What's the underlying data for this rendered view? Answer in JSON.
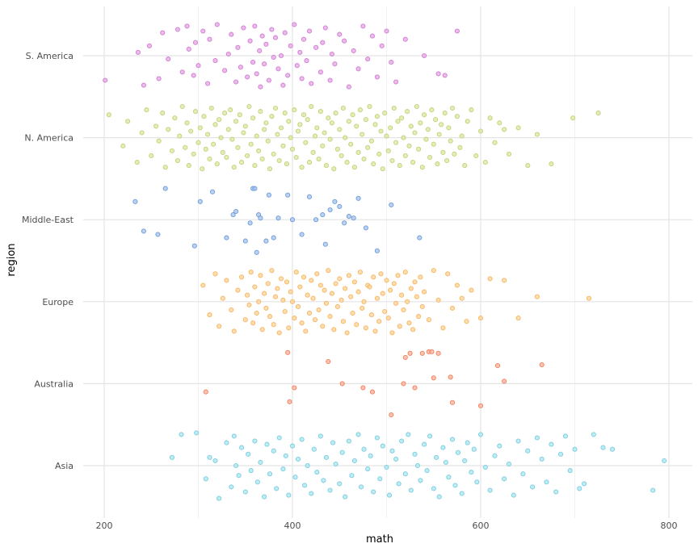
{
  "chart_data": {
    "type": "scatter",
    "jitter": "vertical",
    "xlabel": "math",
    "ylabel": "region",
    "xlim": [
      195,
      830
    ],
    "x_ticks": [
      200,
      400,
      600,
      800
    ],
    "x_tick_labels": [
      "200",
      "400",
      "600",
      "800"
    ],
    "categories": [
      "Asia",
      "Australia",
      "Europe",
      "Middle-East",
      "N. America",
      "S. America"
    ],
    "grid": true,
    "legend": "none",
    "series": [
      {
        "name": "S. America",
        "color": "#E6A3E6",
        "stroke": "#D07FD0",
        "values": [
          201,
          236,
          242,
          248,
          258,
          262,
          268,
          278,
          283,
          288,
          290,
          295,
          297,
          300,
          305,
          310,
          312,
          318,
          320,
          328,
          332,
          335,
          340,
          342,
          345,
          348,
          352,
          355,
          358,
          360,
          362,
          365,
          366,
          368,
          370,
          372,
          375,
          378,
          380,
          382,
          385,
          388,
          390,
          392,
          395,
          398,
          402,
          405,
          408,
          410,
          412,
          415,
          418,
          420,
          425,
          430,
          432,
          435,
          440,
          442,
          445,
          450,
          455,
          460,
          465,
          470,
          475,
          480,
          485,
          490,
          495,
          500,
          505,
          510,
          520,
          540,
          555,
          562,
          575
        ],
        "jitter": [
          -0.3,
          0.04,
          -0.36,
          0.12,
          -0.28,
          0.28,
          -0.04,
          0.32,
          -0.2,
          0.36,
          0.08,
          -0.24,
          0.16,
          -0.12,
          0.3,
          -0.34,
          0.2,
          -0.06,
          0.38,
          -0.18,
          0.02,
          0.26,
          -0.32,
          0.1,
          -0.14,
          0.34,
          -0.26,
          0.18,
          -0.08,
          0.36,
          -0.22,
          0.06,
          -0.38,
          0.24,
          -0.1,
          0.14,
          -0.3,
          0.32,
          -0.02,
          0.22,
          -0.16,
          0.0,
          -0.36,
          0.28,
          -0.24,
          0.12,
          0.38,
          -0.12,
          0.04,
          -0.28,
          0.2,
          -0.06,
          0.3,
          -0.34,
          0.1,
          -0.2,
          0.16,
          0.34,
          -0.3,
          0.02,
          -0.1,
          0.26,
          0.18,
          -0.38,
          0.06,
          -0.16,
          0.36,
          -0.04,
          0.24,
          -0.26,
          0.12,
          0.3,
          -0.08,
          -0.32,
          0.2,
          0.0,
          -0.22,
          -0.24,
          0.3
        ]
      },
      {
        "name": "N. America",
        "color": "#DCE6A0",
        "stroke": "#C3D279",
        "values": [
          205,
          220,
          225,
          235,
          240,
          245,
          250,
          255,
          258,
          262,
          265,
          268,
          272,
          275,
          278,
          280,
          283,
          286,
          288,
          290,
          292,
          295,
          297,
          300,
          302,
          304,
          306,
          308,
          310,
          312,
          314,
          316,
          318,
          320,
          322,
          324,
          326,
          328,
          330,
          332,
          334,
          336,
          338,
          340,
          342,
          344,
          346,
          348,
          350,
          352,
          354,
          356,
          358,
          360,
          362,
          364,
          366,
          368,
          370,
          372,
          374,
          376,
          378,
          380,
          382,
          384,
          386,
          388,
          390,
          392,
          394,
          396,
          398,
          400,
          402,
          404,
          406,
          408,
          410,
          412,
          414,
          416,
          418,
          420,
          422,
          424,
          426,
          428,
          430,
          432,
          434,
          436,
          438,
          440,
          442,
          444,
          446,
          448,
          450,
          452,
          454,
          456,
          458,
          460,
          462,
          464,
          466,
          468,
          470,
          472,
          474,
          476,
          478,
          480,
          482,
          484,
          486,
          488,
          490,
          492,
          494,
          496,
          498,
          500,
          502,
          504,
          506,
          508,
          510,
          512,
          514,
          516,
          518,
          520,
          522,
          524,
          526,
          528,
          530,
          532,
          534,
          536,
          538,
          540,
          542,
          544,
          546,
          548,
          550,
          552,
          554,
          556,
          558,
          560,
          562,
          564,
          566,
          568,
          570,
          572,
          575,
          578,
          580,
          583,
          586,
          590,
          595,
          600,
          605,
          610,
          615,
          620,
          625,
          630,
          640,
          650,
          660,
          675,
          698,
          725
        ],
        "jitter": [
          0.28,
          -0.1,
          0.2,
          -0.3,
          0.06,
          0.34,
          -0.22,
          0.14,
          -0.04,
          0.3,
          -0.36,
          0.1,
          -0.16,
          0.24,
          -0.28,
          0.02,
          0.38,
          -0.12,
          0.18,
          -0.34,
          0.08,
          -0.2,
          0.32,
          -0.06,
          0.12,
          -0.38,
          0.26,
          -0.14,
          0.04,
          -0.26,
          0.36,
          -0.08,
          0.16,
          -0.32,
          0.22,
          0.0,
          -0.18,
          0.3,
          -0.24,
          0.1,
          0.34,
          -0.02,
          -0.36,
          0.2,
          -0.12,
          0.28,
          -0.3,
          0.06,
          0.14,
          -0.22,
          0.38,
          -0.08,
          0.24,
          -0.34,
          0.02,
          -0.16,
          0.32,
          -0.26,
          0.1,
          0.18,
          -0.04,
          -0.38,
          0.26,
          -0.2,
          0.36,
          0.04,
          -0.28,
          0.12,
          -0.1,
          0.3,
          -0.32,
          0.2,
          0.0,
          -0.14,
          0.34,
          -0.24,
          0.08,
          0.16,
          -0.36,
          0.28,
          -0.06,
          0.22,
          -0.3,
          0.38,
          -0.18,
          0.02,
          0.12,
          -0.26,
          0.32,
          -0.1,
          0.06,
          -0.34,
          0.24,
          -0.02,
          0.18,
          -0.38,
          0.3,
          -0.14,
          0.1,
          -0.22,
          0.36,
          0.0,
          -0.3,
          0.2,
          -0.08,
          0.28,
          -0.36,
          0.14,
          -0.18,
          0.34,
          0.04,
          -0.26,
          0.22,
          -0.12,
          0.38,
          -0.04,
          -0.32,
          0.16,
          0.26,
          -0.2,
          0.08,
          -0.38,
          0.3,
          0.02,
          -0.16,
          0.12,
          -0.28,
          0.36,
          -0.06,
          0.2,
          -0.34,
          0.24,
          0.0,
          -0.22,
          0.32,
          -0.1,
          0.14,
          -0.3,
          0.06,
          0.38,
          -0.14,
          0.18,
          -0.36,
          0.28,
          -0.02,
          0.1,
          -0.24,
          0.34,
          -0.08,
          0.22,
          -0.32,
          0.04,
          0.16,
          -0.18,
          0.3,
          -0.28,
          0.12,
          -0.04,
          0.36,
          -0.2,
          0.26,
          -0.12,
          0.02,
          -0.34,
          0.2,
          0.34,
          -0.22,
          0.08,
          -0.3,
          0.24,
          -0.06,
          0.18,
          0.1,
          -0.2,
          0.12,
          -0.34,
          0.04,
          -0.32,
          0.24,
          0.3,
          0.26
        ]
      },
      {
        "name": "Middle-East",
        "color": "#A4C3EE",
        "stroke": "#6E9BD8",
        "values": [
          233,
          242,
          257,
          265,
          296,
          302,
          315,
          330,
          337,
          340,
          350,
          355,
          358,
          360,
          362,
          364,
          366,
          372,
          375,
          380,
          385,
          395,
          400,
          410,
          418,
          425,
          432,
          435,
          440,
          445,
          450,
          455,
          460,
          465,
          470,
          478,
          490,
          505,
          535
        ],
        "jitter": [
          0.22,
          -0.14,
          -0.18,
          0.38,
          -0.32,
          0.22,
          0.34,
          -0.22,
          0.06,
          0.1,
          -0.26,
          -0.04,
          0.38,
          0.38,
          -0.4,
          0.06,
          0.02,
          -0.26,
          0.3,
          -0.22,
          0.02,
          0.3,
          0.0,
          -0.18,
          0.28,
          0.0,
          0.06,
          -0.3,
          0.12,
          0.22,
          0.16,
          -0.04,
          0.04,
          0.02,
          0.26,
          -0.1,
          -0.38,
          0.18,
          -0.22
        ]
      },
      {
        "name": "Europe",
        "color": "#FFD295",
        "stroke": "#F5B660",
        "values": [
          305,
          312,
          318,
          322,
          326,
          330,
          335,
          338,
          342,
          346,
          350,
          352,
          354,
          356,
          358,
          360,
          362,
          364,
          366,
          368,
          370,
          372,
          374,
          376,
          378,
          380,
          382,
          384,
          386,
          388,
          390,
          392,
          394,
          396,
          398,
          400,
          402,
          404,
          406,
          408,
          410,
          412,
          414,
          416,
          418,
          420,
          422,
          424,
          426,
          428,
          430,
          432,
          434,
          436,
          438,
          440,
          442,
          444,
          446,
          448,
          450,
          452,
          454,
          456,
          458,
          460,
          462,
          464,
          466,
          468,
          470,
          472,
          474,
          476,
          478,
          480,
          482,
          484,
          486,
          488,
          490,
          492,
          494,
          496,
          498,
          500,
          502,
          504,
          506,
          508,
          510,
          512,
          514,
          516,
          518,
          520,
          522,
          524,
          526,
          528,
          530,
          532,
          534,
          536,
          538,
          540,
          545,
          550,
          555,
          560,
          565,
          570,
          575,
          580,
          585,
          590,
          600,
          610,
          625,
          640,
          660,
          715
        ],
        "jitter": [
          0.2,
          -0.16,
          0.34,
          -0.3,
          0.04,
          0.26,
          -0.1,
          -0.36,
          0.14,
          0.3,
          -0.22,
          0.08,
          -0.04,
          0.36,
          -0.26,
          0.18,
          -0.14,
          0.0,
          0.32,
          -0.34,
          0.1,
          -0.08,
          0.22,
          -0.18,
          0.38,
          -0.28,
          0.06,
          0.16,
          -0.38,
          0.28,
          0.02,
          -0.12,
          0.24,
          -0.32,
          0.12,
          0.0,
          -0.2,
          0.36,
          -0.06,
          0.18,
          -0.26,
          0.3,
          -0.36,
          0.08,
          -0.14,
          0.26,
          0.04,
          -0.22,
          0.34,
          -0.1,
          0.2,
          -0.3,
          0.14,
          -0.02,
          0.38,
          -0.18,
          0.1,
          -0.34,
          0.22,
          -0.06,
          0.28,
          0.02,
          -0.24,
          0.16,
          -0.38,
          0.32,
          0.06,
          -0.14,
          0.24,
          -0.28,
          0.12,
          0.36,
          -0.08,
          0.0,
          -0.32,
          0.2,
          0.18,
          -0.16,
          0.3,
          -0.36,
          0.04,
          -0.24,
          0.34,
          0.1,
          -0.12,
          0.26,
          -0.2,
          0.14,
          -0.38,
          0.22,
          -0.02,
          0.32,
          -0.3,
          0.08,
          -0.1,
          0.36,
          0.0,
          -0.26,
          0.16,
          -0.34,
          0.24,
          0.06,
          -0.18,
          0.3,
          -0.06,
          0.12,
          -0.22,
          0.38,
          0.02,
          -0.32,
          0.34,
          -0.08,
          0.2,
          0.04,
          -0.24,
          0.14,
          -0.2,
          0.28,
          0.26,
          -0.2,
          0.06,
          0.04
        ]
      },
      {
        "name": "Australia",
        "color": "#FFAF95",
        "stroke": "#F07F5E",
        "values": [
          308,
          395,
          397,
          402,
          438,
          453,
          475,
          485,
          505,
          518,
          520,
          525,
          530,
          538,
          545,
          548,
          550,
          555,
          568,
          570,
          600,
          618,
          625,
          665
        ],
        "jitter": [
          -0.1,
          0.38,
          -0.22,
          -0.05,
          0.27,
          0.0,
          -0.05,
          -0.1,
          -0.38,
          0.0,
          0.32,
          0.37,
          -0.05,
          0.37,
          0.39,
          0.39,
          0.07,
          0.37,
          0.08,
          -0.23,
          -0.27,
          0.22,
          0.03,
          0.23
        ]
      },
      {
        "name": "Asia",
        "color": "#A8E6F0",
        "stroke": "#7CCDDD",
        "values": [
          272,
          282,
          298,
          308,
          312,
          318,
          322,
          330,
          335,
          338,
          340,
          343,
          346,
          350,
          353,
          356,
          360,
          363,
          366,
          370,
          373,
          376,
          380,
          383,
          386,
          390,
          393,
          396,
          400,
          403,
          406,
          410,
          413,
          416,
          420,
          423,
          426,
          430,
          433,
          436,
          440,
          443,
          446,
          450,
          453,
          456,
          460,
          463,
          466,
          470,
          473,
          476,
          480,
          483,
          486,
          490,
          493,
          496,
          500,
          503,
          506,
          510,
          513,
          516,
          520,
          523,
          526,
          530,
          533,
          536,
          540,
          543,
          546,
          550,
          553,
          556,
          560,
          563,
          566,
          570,
          573,
          576,
          580,
          583,
          586,
          590,
          593,
          596,
          600,
          605,
          610,
          615,
          620,
          625,
          630,
          635,
          640,
          645,
          650,
          655,
          660,
          665,
          670,
          675,
          680,
          685,
          690,
          695,
          700,
          705,
          710,
          720,
          730,
          740,
          783,
          795
        ],
        "jitter": [
          0.1,
          0.38,
          0.4,
          -0.16,
          0.1,
          0.06,
          -0.4,
          0.28,
          -0.26,
          0.36,
          0.0,
          -0.12,
          0.22,
          -0.32,
          0.14,
          -0.06,
          0.3,
          -0.2,
          0.04,
          -0.38,
          0.26,
          -0.1,
          0.18,
          -0.28,
          0.34,
          -0.04,
          0.12,
          -0.36,
          0.24,
          -0.14,
          0.08,
          0.32,
          -0.24,
          0.0,
          -0.34,
          0.2,
          -0.08,
          0.36,
          -0.18,
          0.1,
          -0.3,
          0.28,
          0.02,
          -0.22,
          0.16,
          -0.38,
          0.3,
          -0.12,
          0.06,
          0.38,
          -0.26,
          0.2,
          -0.04,
          0.12,
          -0.32,
          0.34,
          -0.16,
          0.24,
          -0.02,
          -0.36,
          0.18,
          0.08,
          -0.22,
          0.3,
          -0.1,
          0.38,
          -0.3,
          0.14,
          0.0,
          -0.18,
          0.26,
          -0.06,
          0.36,
          -0.28,
          0.1,
          -0.38,
          0.22,
          0.04,
          -0.14,
          0.32,
          -0.24,
          0.16,
          -0.34,
          0.06,
          0.28,
          -0.08,
          0.2,
          -0.2,
          0.38,
          -0.02,
          -0.3,
          0.12,
          0.24,
          -0.16,
          0.02,
          -0.36,
          0.3,
          -0.1,
          0.18,
          -0.26,
          0.34,
          0.08,
          -0.2,
          0.26,
          -0.32,
          0.14,
          0.36,
          -0.06,
          0.2,
          -0.28,
          -0.22,
          0.38,
          0.22,
          0.2,
          -0.3,
          0.06
        ]
      }
    ]
  }
}
